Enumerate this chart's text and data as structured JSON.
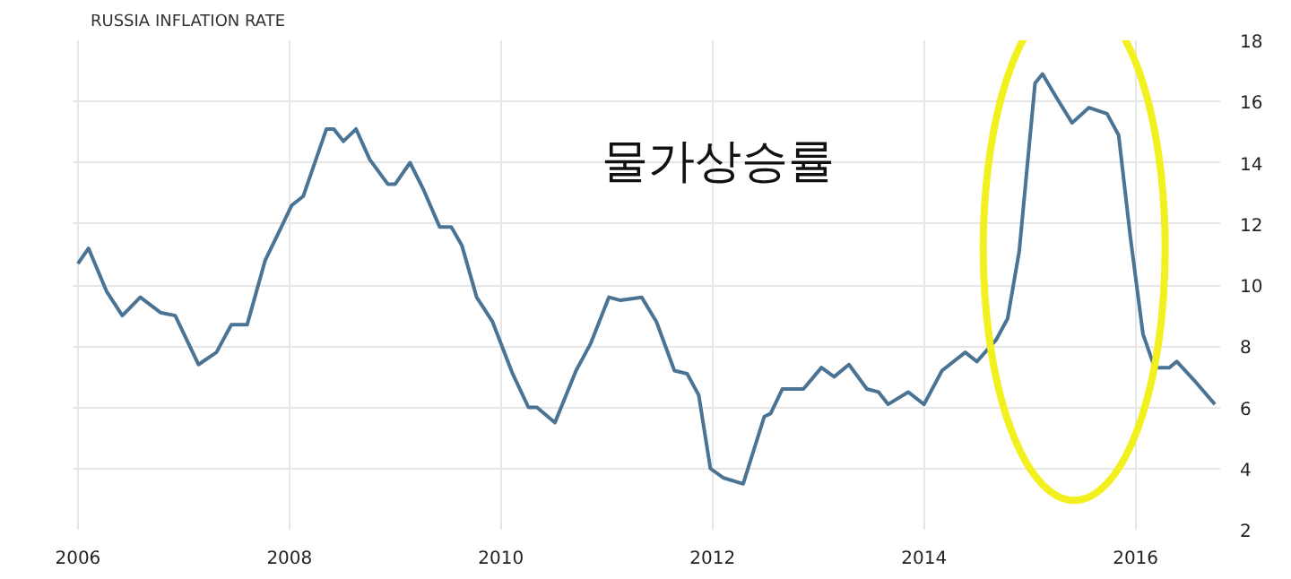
{
  "chart_data": {
    "type": "line",
    "title": "RUSSIA INFLATION RATE",
    "annotations": [
      "물가상승률"
    ],
    "xlim": [
      2005.95,
      2016.8
    ],
    "xticks": [
      2006,
      2008,
      2010,
      2012,
      2014,
      2016
    ],
    "ylim": [
      2,
      18
    ],
    "yticks": [
      2,
      4,
      6,
      8,
      10,
      12,
      14,
      16,
      18
    ],
    "grid": true,
    "series": [
      {
        "color": "#4a7394",
        "x": [
          2006.0,
          2006.1,
          2006.27,
          2006.42,
          2006.59,
          2006.78,
          2006.92,
          2007.14,
          2007.31,
          2007.45,
          2007.6,
          2007.77,
          2007.91,
          2008.02,
          2008.13,
          2008.35,
          2008.42,
          2008.51,
          2008.63,
          2008.76,
          2008.93,
          2009.0,
          2009.14,
          2009.27,
          2009.42,
          2009.53,
          2009.63,
          2009.77,
          2009.92,
          2010.11,
          2010.26,
          2010.34,
          2010.51,
          2010.71,
          2010.85,
          2011.02,
          2011.13,
          2011.33,
          2011.47,
          2011.64,
          2011.76,
          2011.87,
          2011.98,
          2012.1,
          2012.29,
          2012.49,
          2012.55,
          2012.66,
          2012.86,
          2013.03,
          2013.15,
          2013.29,
          2013.46,
          2013.57,
          2013.66,
          2013.85,
          2014.0,
          2014.17,
          2014.39,
          2014.5,
          2014.68,
          2014.79,
          2014.9,
          2015.05,
          2015.12,
          2015.24,
          2015.4,
          2015.56,
          2015.73,
          2015.84,
          2015.95,
          2016.07,
          2016.18,
          2016.32,
          2016.39,
          2016.55,
          2016.75
        ],
        "values": [
          10.7,
          11.2,
          9.8,
          9.0,
          9.6,
          9.1,
          9.0,
          7.4,
          7.8,
          8.7,
          8.7,
          10.8,
          11.8,
          12.6,
          12.9,
          15.1,
          15.1,
          14.7,
          15.1,
          14.1,
          13.3,
          13.3,
          14.0,
          13.1,
          11.9,
          11.9,
          11.3,
          9.6,
          8.8,
          7.1,
          6.0,
          6.0,
          5.5,
          7.2,
          8.1,
          9.6,
          9.5,
          9.6,
          8.8,
          7.2,
          7.1,
          6.4,
          4.0,
          3.7,
          3.5,
          5.7,
          5.8,
          6.6,
          6.6,
          7.3,
          7.0,
          7.4,
          6.6,
          6.5,
          6.1,
          6.5,
          6.1,
          7.2,
          7.8,
          7.5,
          8.2,
          8.9,
          11.1,
          16.6,
          16.9,
          16.2,
          15.3,
          15.8,
          15.6,
          14.9,
          11.6,
          8.4,
          7.3,
          7.3,
          7.5,
          6.9,
          6.1
        ]
      }
    ]
  }
}
